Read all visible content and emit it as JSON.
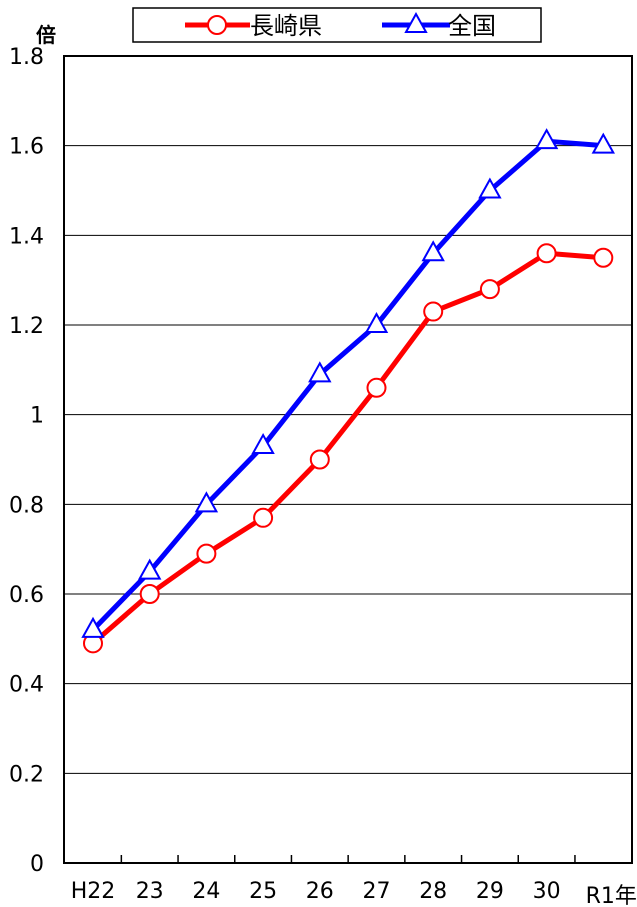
{
  "chart_data": {
    "type": "line",
    "ylabel": "倍",
    "xunit": "年",
    "categories": [
      "H22",
      "23",
      "24",
      "25",
      "26",
      "27",
      "28",
      "29",
      "30",
      "R1"
    ],
    "series": [
      {
        "name": "長崎県",
        "marker": "circle",
        "color": "#ff0000",
        "values": [
          0.49,
          0.6,
          0.69,
          0.77,
          0.9,
          1.06,
          1.23,
          1.28,
          1.36,
          1.35
        ]
      },
      {
        "name": "全国",
        "marker": "triangle",
        "color": "#0000ff",
        "values": [
          0.52,
          0.65,
          0.8,
          0.93,
          1.09,
          1.2,
          1.36,
          1.5,
          1.61,
          1.6
        ]
      }
    ],
    "ylim": [
      0,
      1.8
    ],
    "yticks": [
      "0",
      "0.2",
      "0.4",
      "0.6",
      "0.8",
      "1",
      "1.2",
      "1.4",
      "1.6",
      "1.8"
    ],
    "grid": true,
    "legend_position": "top"
  }
}
